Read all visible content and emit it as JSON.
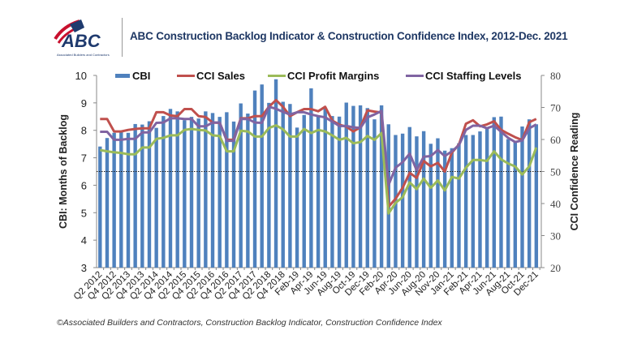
{
  "header": {
    "title": "ABC Construction Backlog Indicator & Construction Confidence Index, 2012-Dec. 2021",
    "logo_text": "ABC",
    "logo_subtext": "Associated Builders and Contractors"
  },
  "footer": {
    "source": "©Associated Builders and Contractors, Construction Backlog Indicator, Construction Confidence Index"
  },
  "chart_data": {
    "type": "bar+line",
    "title": "",
    "ylabel_left": "CBI: Months of Backlog",
    "ylabel_right": "CCI Confidence Reading",
    "ylim_left": [
      3,
      10
    ],
    "ylim_right": [
      20,
      80
    ],
    "yticks_left": [
      "3",
      "4",
      "5",
      "6",
      "7",
      "8",
      "9",
      "10"
    ],
    "yticks_right": [
      "20",
      "30",
      "40",
      "50",
      "60",
      "70",
      "80"
    ],
    "reference_line_right": 50,
    "grid": false,
    "legend_position": "top",
    "x_tick_labels": [
      "Q2 2012",
      "Q4 2012",
      "Q2 2013",
      "Q4 2013",
      "Q2 2014",
      "Q4 2014",
      "Q2 2015",
      "Q4 2015",
      "Q2 2016",
      "Q4 2016",
      "Q2 2017",
      "Q4 2017",
      "Q2 2018",
      "Q4 2018",
      "Feb-19",
      "Apr-19",
      "Jun-19",
      "Aug-19",
      "Oct-19",
      "Dec-19",
      "Feb-20",
      "Apr-20",
      "Jun-20",
      "Aug-20",
      "Nov-20",
      "Jan-21",
      "Feb-21",
      "Apr-21",
      "Jun-21",
      "Aug-21",
      "Oct-21",
      "Dec-21"
    ],
    "series": [
      {
        "name": "CBI",
        "type": "bar",
        "axis": "left",
        "color": "#4f81bd",
        "values": [
          7.41,
          7.72,
          7.91,
          7.96,
          7.91,
          8.23,
          8.21,
          8.33,
          8.09,
          8.52,
          8.78,
          8.69,
          8.37,
          8.49,
          8.43,
          8.69,
          8.63,
          8.49,
          8.66,
          8.32,
          8.98,
          8.61,
          9.45,
          9.67,
          9.0,
          9.86,
          9.04,
          8.96,
          8.1,
          8.56,
          9.53,
          8.5,
          8.81,
          8.52,
          8.5,
          9.01,
          8.89,
          8.91,
          8.81,
          8.4,
          8.91,
          8.22,
          7.83,
          7.88,
          8.12,
          7.78,
          7.97,
          7.51,
          7.71,
          7.26,
          7.35,
          7.53,
          7.83,
          7.83,
          7.96,
          8.1,
          8.48,
          8.5,
          7.68,
          7.58,
          8.14,
          8.4,
          8.22
        ]
      },
      {
        "name": "CCI Sales",
        "type": "line",
        "axis": "right",
        "color": "#c0504d",
        "values": [
          66.4,
          66.4,
          62.5,
          62.5,
          63.0,
          63.3,
          63.5,
          63.5,
          68.5,
          68.5,
          67.5,
          67.3,
          69.5,
          69.5,
          67.3,
          67.0,
          65.3,
          65.2,
          59.9,
          59.9,
          66.6,
          66.6,
          67.3,
          67.3,
          70.2,
          72.3,
          70.2,
          67.3,
          68.5,
          69.5,
          69.5,
          68.8,
          70.2,
          65.9,
          64.6,
          64.0,
          62.5,
          63.8,
          69.1,
          68.7,
          68.4,
          39.0,
          41.5,
          44.9,
          49.6,
          48.0,
          53.3,
          51.6,
          52.7,
          50.0,
          55.9,
          58.4,
          64.9,
          66.0,
          64.1,
          64.7,
          65.7,
          63.0,
          61.8,
          60.7,
          59.8,
          65.4,
          66.4
        ]
      },
      {
        "name": "CCI Profit Margins",
        "type": "line",
        "axis": "right",
        "color": "#9bbb59",
        "values": [
          56.7,
          56.3,
          56.0,
          55.8,
          55.4,
          55.4,
          57.5,
          57.5,
          60.2,
          60.5,
          61.3,
          61.3,
          63.0,
          63.3,
          63.0,
          62.8,
          61.3,
          61.1,
          56.3,
          56.3,
          62.7,
          62.5,
          60.9,
          60.9,
          63.6,
          64.4,
          63.2,
          60.9,
          60.9,
          63.3,
          62.0,
          63.0,
          62.5,
          61.3,
          59.9,
          60.5,
          58.8,
          59.2,
          61.1,
          59.9,
          62.0,
          36.9,
          40.2,
          42.0,
          46.6,
          44.5,
          47.8,
          44.9,
          47.2,
          44.1,
          48.3,
          47.8,
          51.2,
          53.6,
          53.6,
          53.3,
          56.3,
          53.8,
          52.5,
          51.6,
          49.1,
          51.6,
          57.5
        ]
      },
      {
        "name": "CCI Staffing Levels",
        "type": "line",
        "axis": "right",
        "color": "#8064a2",
        "values": [
          62.4,
          62.4,
          59.9,
          59.9,
          60.2,
          60.2,
          62.2,
          62.2,
          65.2,
          65.3,
          66.6,
          66.6,
          66.4,
          66.4,
          64.1,
          64.1,
          65.3,
          65.3,
          59.6,
          59.6,
          66.4,
          66.4,
          65.3,
          65.2,
          70.2,
          69.6,
          68.6,
          67.8,
          68.5,
          68.5,
          67.8,
          67.3,
          66.9,
          65.6,
          64.2,
          64.2,
          63.8,
          63.6,
          66.9,
          67.8,
          68.9,
          45.8,
          51.2,
          52.9,
          55.6,
          50.4,
          54.6,
          54.8,
          56.7,
          54.8,
          56.3,
          58.2,
          63.0,
          64.3,
          64.3,
          63.5,
          64.3,
          62.4,
          60.5,
          59.2,
          59.7,
          63.5,
          64.7
        ]
      }
    ]
  }
}
